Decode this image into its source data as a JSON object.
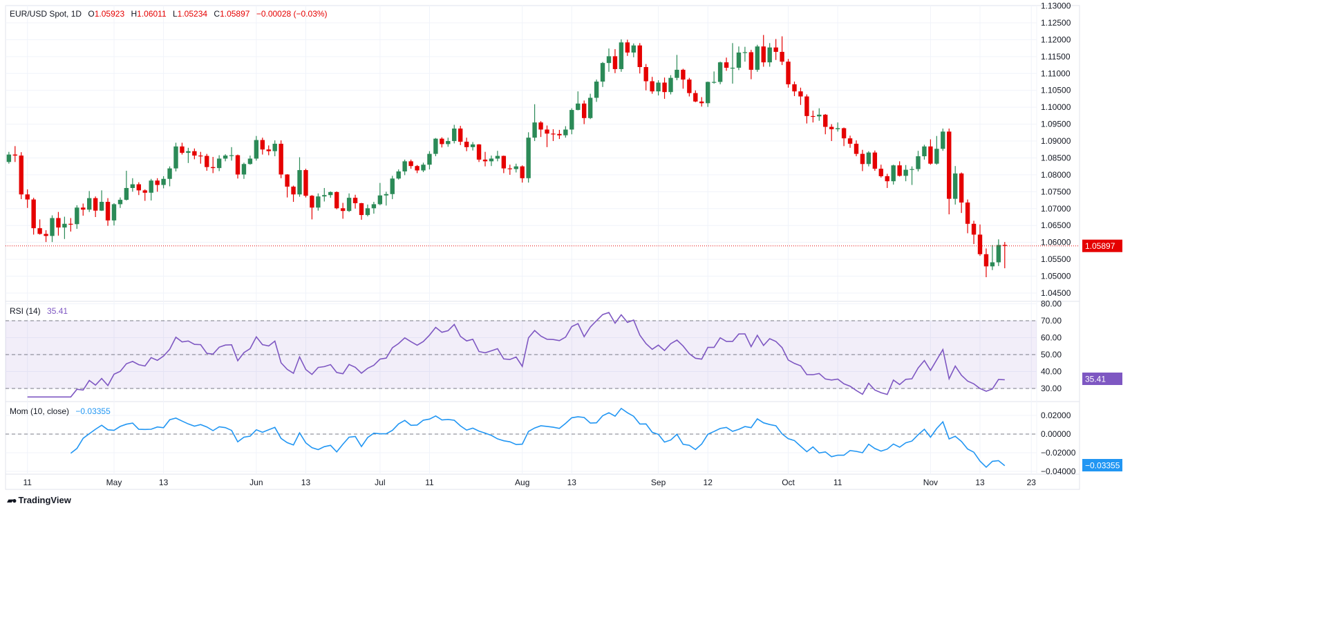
{
  "header": {
    "symbol": "EUR/USD Spot, 1D",
    "open_label": "O",
    "open": "1.05923",
    "high_label": "H",
    "high": "1.06011",
    "low_label": "L",
    "low": "1.05234",
    "close_label": "C",
    "close": "1.05897",
    "change": "−0.00028 (−0.03%)"
  },
  "rsi_legend": {
    "label": "RSI (14)",
    "value": "35.41"
  },
  "mom_legend": {
    "label": "Mom (10, close)",
    "value": "−0.03355"
  },
  "branding": {
    "name": "TradingView"
  },
  "colors": {
    "up": "#2b8a57",
    "down": "#e50000",
    "rsi": "#7e57c2",
    "rsi_band": "#7e57c2",
    "mom": "#2196f3",
    "grid": "#f0f3fa"
  },
  "chart_data": [
    {
      "type": "candlestick",
      "title": "EUR/USD Spot, 1D",
      "ylim": [
        1.045,
        1.13
      ],
      "yticks": [
        "1.04500",
        "1.05000",
        "1.05500",
        "1.06000",
        "1.06500",
        "1.07000",
        "1.07500",
        "1.08000",
        "1.08500",
        "1.09000",
        "1.09500",
        "1.10000",
        "1.10500",
        "1.11000",
        "1.11500",
        "1.12000",
        "1.12500",
        "1.13000"
      ],
      "xticks": [
        {
          "label": "11",
          "index": 3
        },
        {
          "label": "May",
          "index": 17
        },
        {
          "label": "13",
          "index": 25
        },
        {
          "label": "Jun",
          "index": 40
        },
        {
          "label": "13",
          "index": 48
        },
        {
          "label": "Jul",
          "index": 60
        },
        {
          "label": "11",
          "index": 68
        },
        {
          "label": "Aug",
          "index": 83
        },
        {
          "label": "13",
          "index": 91
        },
        {
          "label": "Sep",
          "index": 105
        },
        {
          "label": "12",
          "index": 113
        },
        {
          "label": "Oct",
          "index": 126
        },
        {
          "label": "11",
          "index": 134
        },
        {
          "label": "Nov",
          "index": 149
        },
        {
          "label": "13",
          "index": 157
        },
        {
          "label": "23",
          "index": 165.3
        }
      ],
      "last_price_label": "1.05897",
      "open": [
        1.0838,
        1.086,
        1.0857,
        1.0742,
        1.0727,
        1.0642,
        1.0625,
        1.0619,
        1.0672,
        1.0644,
        1.0655,
        1.0654,
        1.0703,
        1.0697,
        1.0731,
        1.0694,
        1.072,
        1.0665,
        1.0713,
        1.0726,
        1.0761,
        1.0772,
        1.0754,
        1.0747,
        1.0783,
        1.077,
        1.0788,
        1.0819,
        1.0884,
        1.0865,
        1.087,
        1.0857,
        1.0856,
        1.0823,
        1.082,
        1.0848,
        1.0857,
        1.0858,
        1.0801,
        1.0832,
        1.0848,
        1.0903,
        1.0875,
        1.087,
        1.0892,
        1.0801,
        1.0765,
        1.0742,
        1.0814,
        1.0738,
        1.0703,
        1.0736,
        1.074,
        1.0749,
        1.0701,
        1.0693,
        1.0732,
        1.0716,
        1.0681,
        1.0701,
        1.0713,
        1.0739,
        1.0743,
        1.0789,
        1.081,
        1.084,
        1.0826,
        1.0813,
        1.083,
        1.0862,
        1.0907,
        1.0891,
        1.09,
        1.0937,
        1.0898,
        1.0882,
        1.089,
        1.0845,
        1.084,
        1.0848,
        1.0856,
        1.0819,
        1.0817,
        1.0825,
        1.079,
        1.091,
        1.0955,
        1.0934,
        1.0922,
        1.0921,
        1.0917,
        1.0934,
        1.0992,
        1.1011,
        1.0968,
        1.1028,
        1.1076,
        1.1131,
        1.1151,
        1.1113,
        1.1192,
        1.1162,
        1.1183,
        1.1119,
        1.1077,
        1.1047,
        1.1073,
        1.1045,
        1.1087,
        1.1111,
        1.1082,
        1.1042,
        1.1017,
        1.1012,
        1.1075,
        1.1075,
        1.1133,
        1.1117,
        1.1117,
        1.1162,
        1.1163,
        1.1111,
        1.118,
        1.1133,
        1.1177,
        1.1164,
        1.1135,
        1.1068,
        1.1047,
        1.1032,
        1.0974,
        1.0973,
        1.0978,
        1.0942,
        1.0935,
        1.0938,
        1.0908,
        1.0892,
        1.0862,
        1.0832,
        1.0866,
        1.0818,
        1.0796,
        1.0781,
        1.0828,
        1.0797,
        1.0815,
        1.0817,
        1.0855,
        1.0884,
        1.0833,
        1.0877,
        1.0928,
        1.0729,
        1.0804,
        1.0718,
        1.0655,
        1.0623,
        1.0565,
        1.0529,
        1.0541,
        1.05923
      ],
      "high": [
        1.0868,
        1.0885,
        1.0867,
        1.0757,
        1.0732,
        1.0668,
        1.0636,
        1.068,
        1.069,
        1.0676,
        1.0672,
        1.071,
        1.0715,
        1.0752,
        1.0736,
        1.0754,
        1.0731,
        1.0716,
        1.0733,
        1.0812,
        1.079,
        1.0778,
        1.0757,
        1.0788,
        1.079,
        1.0796,
        1.0825,
        1.0895,
        1.0895,
        1.088,
        1.0878,
        1.0868,
        1.0862,
        1.0853,
        1.0858,
        1.0861,
        1.0882,
        1.086,
        1.0836,
        1.0857,
        1.0915,
        1.091,
        1.0887,
        1.0902,
        1.0902,
        1.0802,
        1.0768,
        1.0852,
        1.0818,
        1.074,
        1.0745,
        1.0761,
        1.0751,
        1.0751,
        1.0717,
        1.0745,
        1.0741,
        1.0717,
        1.0712,
        1.072,
        1.0776,
        1.075,
        1.0797,
        1.0816,
        1.0845,
        1.0845,
        1.0829,
        1.0836,
        1.087,
        1.0909,
        1.0911,
        1.091,
        1.0948,
        1.0945,
        1.091,
        1.0897,
        1.0891,
        1.0868,
        1.0857,
        1.0871,
        1.0857,
        1.083,
        1.0833,
        1.0828,
        1.0926,
        1.1009,
        1.0959,
        1.0946,
        1.0935,
        1.0933,
        1.0944,
        1.0997,
        1.1047,
        1.102,
        1.104,
        1.1082,
        1.1134,
        1.1174,
        1.1172,
        1.1201,
        1.12,
        1.1189,
        1.119,
        1.1128,
        1.109,
        1.108,
        1.1088,
        1.1095,
        1.1155,
        1.1114,
        1.1087,
        1.105,
        1.103,
        1.1076,
        1.1106,
        1.1135,
        1.1147,
        1.119,
        1.118,
        1.1179,
        1.117,
        1.1185,
        1.1214,
        1.119,
        1.1202,
        1.121,
        1.1143,
        1.1076,
        1.1058,
        1.1038,
        1.099,
        1.0997,
        1.098,
        1.095,
        1.0955,
        1.094,
        1.0916,
        1.0902,
        1.0874,
        1.087,
        1.0872,
        1.083,
        1.0803,
        1.083,
        1.084,
        1.0829,
        1.0825,
        1.0871,
        1.0889,
        1.0905,
        1.0915,
        1.0937,
        1.0937,
        1.0826,
        1.0807,
        1.0727,
        1.0664,
        1.0653,
        1.0582,
        1.0592,
        1.0609,
        1.06011
      ],
      "low": [
        1.0833,
        1.0838,
        1.0728,
        1.0702,
        1.0623,
        1.0623,
        1.0601,
        1.0601,
        1.062,
        1.061,
        1.0632,
        1.064,
        1.0679,
        1.069,
        1.0675,
        1.0693,
        1.0649,
        1.065,
        1.0702,
        1.0724,
        1.075,
        1.074,
        1.0723,
        1.0724,
        1.075,
        1.076,
        1.0766,
        1.081,
        1.086,
        1.0835,
        1.0846,
        1.0833,
        1.0812,
        1.0805,
        1.0811,
        1.084,
        1.0842,
        1.0789,
        1.0788,
        1.083,
        1.0842,
        1.086,
        1.0858,
        1.0855,
        1.079,
        1.0733,
        1.072,
        1.0735,
        1.0733,
        1.0668,
        1.0694,
        1.0721,
        1.0732,
        1.0698,
        1.067,
        1.069,
        1.07,
        1.0667,
        1.0677,
        1.0685,
        1.071,
        1.0709,
        1.0728,
        1.0786,
        1.0799,
        1.0818,
        1.0805,
        1.0808,
        1.0816,
        1.0855,
        1.0881,
        1.0883,
        1.0893,
        1.0888,
        1.087,
        1.0872,
        1.0838,
        1.0825,
        1.0826,
        1.084,
        1.0805,
        1.08,
        1.0807,
        1.0777,
        1.0777,
        1.09,
        1.0912,
        1.0882,
        1.09,
        1.0906,
        1.091,
        1.092,
        1.0991,
        1.095,
        1.0965,
        1.1016,
        1.106,
        1.1105,
        1.1101,
        1.1105,
        1.1152,
        1.1148,
        1.11,
        1.105,
        1.104,
        1.1035,
        1.1025,
        1.1038,
        1.108,
        1.1055,
        1.1032,
        1.1015,
        1.1002,
        1.1001,
        1.107,
        1.1068,
        1.1108,
        1.107,
        1.111,
        1.1135,
        1.1083,
        1.1105,
        1.112,
        1.112,
        1.114,
        1.1125,
        1.1058,
        1.1033,
        1.1007,
        1.0952,
        1.0955,
        1.096,
        1.092,
        1.09,
        1.0928,
        1.0885,
        1.088,
        1.0855,
        1.0811,
        1.0825,
        1.0812,
        1.0792,
        1.0761,
        1.0771,
        1.0795,
        1.0781,
        1.077,
        1.081,
        1.0845,
        1.083,
        1.083,
        1.0871,
        1.0683,
        1.0712,
        1.0687,
        1.0627,
        1.0595,
        1.056,
        1.0497,
        1.0518,
        1.053,
        1.05234
      ],
      "close": [
        1.086,
        1.0857,
        1.0742,
        1.0727,
        1.0642,
        1.0625,
        1.0619,
        1.0672,
        1.0644,
        1.0655,
        1.0654,
        1.0703,
        1.0697,
        1.0731,
        1.0694,
        1.072,
        1.0665,
        1.0713,
        1.0726,
        1.0761,
        1.0772,
        1.0754,
        1.0747,
        1.0783,
        1.077,
        1.0788,
        1.0819,
        1.0884,
        1.0865,
        1.087,
        1.0857,
        1.0856,
        1.0823,
        1.082,
        1.0848,
        1.0857,
        1.0858,
        1.0801,
        1.0832,
        1.0848,
        1.0903,
        1.0875,
        1.087,
        1.0892,
        1.0801,
        1.0765,
        1.0742,
        1.0814,
        1.0738,
        1.0703,
        1.0736,
        1.074,
        1.0749,
        1.0701,
        1.0693,
        1.0732,
        1.0716,
        1.0681,
        1.0701,
        1.0713,
        1.0739,
        1.0743,
        1.0789,
        1.081,
        1.084,
        1.0826,
        1.0813,
        1.083,
        1.0862,
        1.0907,
        1.0891,
        1.09,
        1.0937,
        1.0898,
        1.0882,
        1.089,
        1.0845,
        1.084,
        1.0848,
        1.0856,
        1.0819,
        1.0817,
        1.0825,
        1.079,
        1.091,
        1.0955,
        1.0934,
        1.0922,
        1.0921,
        1.0917,
        1.0934,
        1.0992,
        1.1011,
        1.0968,
        1.1028,
        1.1076,
        1.1131,
        1.1151,
        1.1113,
        1.1192,
        1.1162,
        1.1183,
        1.1119,
        1.1077,
        1.1047,
        1.1073,
        1.1045,
        1.1087,
        1.1111,
        1.1082,
        1.1042,
        1.1017,
        1.1012,
        1.1075,
        1.1075,
        1.1133,
        1.1117,
        1.1117,
        1.1162,
        1.1163,
        1.1111,
        1.118,
        1.1133,
        1.1177,
        1.1164,
        1.1135,
        1.1068,
        1.1047,
        1.1032,
        1.0974,
        1.0973,
        1.0978,
        1.0942,
        1.0935,
        1.0938,
        1.0908,
        1.0892,
        1.0862,
        1.0832,
        1.0866,
        1.0818,
        1.0796,
        1.0781,
        1.0828,
        1.0797,
        1.0815,
        1.0817,
        1.0855,
        1.0884,
        1.0833,
        1.0877,
        1.0928,
        1.0729,
        1.0804,
        1.0718,
        1.0655,
        1.0623,
        1.0565,
        1.0529,
        1.0541,
        1.05923,
        1.05897
      ]
    },
    {
      "type": "line",
      "title": "RSI (14)",
      "period": 14,
      "ylim": [
        25,
        82
      ],
      "yticks": [
        "30.00",
        "40.00",
        "50.00",
        "60.00",
        "70.00",
        "80.00"
      ],
      "levels": [
        70,
        50,
        30
      ],
      "last_value_label": "35.41"
    },
    {
      "type": "line",
      "title": "Mom (10, close)",
      "length": 10,
      "ylim": [
        -0.042,
        0.027
      ],
      "yticks": [
        "-0.04000",
        "-0.02000",
        "0.00000",
        "0.02000"
      ],
      "zero_line": true,
      "last_value_label": "−0.03355"
    }
  ]
}
